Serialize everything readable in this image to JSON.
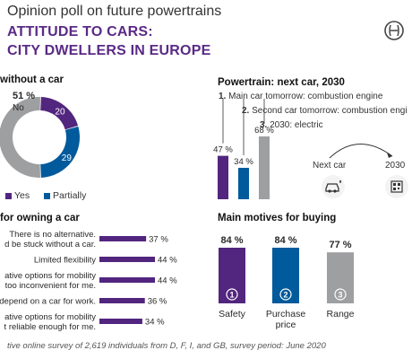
{
  "header": {
    "kicker": "Opinion poll on future powertrains",
    "title_line1": "ATTITUDE TO CARS:",
    "title_line2": "CITY DWELLERS IN EUROPE"
  },
  "colors": {
    "purple": "#52257e",
    "blue": "#005a9b",
    "gray": "#9e9fa1",
    "title_purple": "#5a2a86"
  },
  "icons": [
    "bosch-logo-icon",
    "car-charging-icon",
    "qr-code-icon"
  ],
  "donut": {
    "title": "without a car",
    "no_label": "No",
    "legend": {
      "yes": "Yes",
      "partially": "Partially"
    }
  },
  "owning": {
    "title": "for owning a car"
  },
  "powertrain": {
    "title": "Powertrain: next car, 2030",
    "legend_items": [
      {
        "num": "1.",
        "text": "Main car tomorrow: combustion engine"
      },
      {
        "num": "2.",
        "text": "Second car tomorrow: combustion engi"
      },
      {
        "num": "3.",
        "text": "2030: electric"
      }
    ],
    "next_car_label": "Next car",
    "year_label": "2030"
  },
  "motives": {
    "title": "Main motives for buying"
  },
  "footnote": "tive online survey of 2,619 individuals from D, F, I, and GB, survey period: June 2020",
  "chart_data": [
    {
      "type": "pie",
      "title": "without a car",
      "slices": [
        {
          "name": "No",
          "value": 51,
          "label": "51 %",
          "color": "#9e9fa1"
        },
        {
          "name": "Yes",
          "value": 20,
          "label": "20",
          "color": "#52257e"
        },
        {
          "name": "Partially",
          "value": 29,
          "label": "29",
          "color": "#005a9b"
        }
      ]
    },
    {
      "type": "bar",
      "title": "for owning a car",
      "orientation": "horizontal",
      "categories": [
        [
          "There is no alternative.",
          "d be stuck without a car."
        ],
        [
          "Limited flexibility"
        ],
        [
          "ative options for mobility",
          "too inconvenient for me."
        ],
        [
          "depend on a car for work."
        ],
        [
          "ative options for mobility",
          "t reliable enough for me."
        ]
      ],
      "values": [
        37,
        44,
        44,
        36,
        34
      ],
      "value_labels": [
        "37 %",
        "44 %",
        "44 %",
        "36 %",
        "34 %"
      ],
      "color": "#52257e"
    },
    {
      "type": "bar",
      "title": "Powertrain: next car, 2030",
      "categories": [
        "1",
        "2",
        "3"
      ],
      "values": [
        47,
        34,
        68
      ],
      "value_labels": [
        "47 %",
        "34 %",
        "68 %"
      ],
      "colors": [
        "#52257e",
        "#005a9b",
        "#9e9fa1"
      ]
    },
    {
      "type": "bar",
      "title": "Main motives for buying",
      "categories": [
        "Safety",
        "Purchase\nprice",
        "Range"
      ],
      "values": [
        84,
        84,
        77
      ],
      "value_labels": [
        "84 %",
        "84 %",
        "77 %"
      ],
      "numbers": [
        "1",
        "2",
        "3"
      ],
      "colors": [
        "#52257e",
        "#005a9b",
        "#9e9fa1"
      ]
    }
  ]
}
